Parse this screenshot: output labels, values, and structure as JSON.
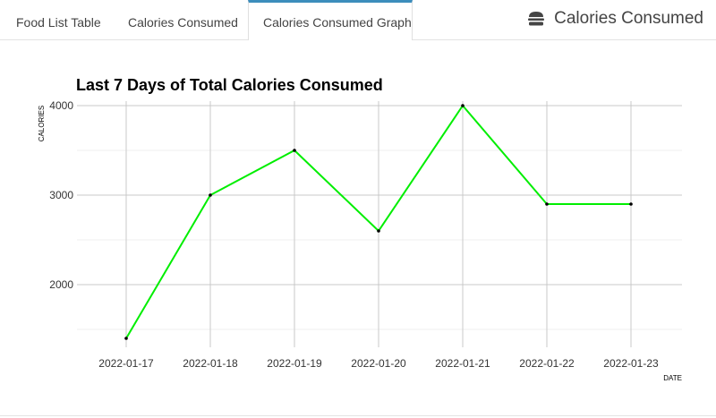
{
  "tabs": [
    {
      "label": "Food List Table"
    },
    {
      "label": "Calories Consumed"
    },
    {
      "label": "Calories Consumed Graph"
    }
  ],
  "header": {
    "title": "Calories Consumed",
    "icon": "hamburger-icon"
  },
  "accent_color": "#3c8dbc",
  "chart_data": {
    "type": "line",
    "title": "Last 7 Days of Total Calories Consumed",
    "xlabel": "DATE",
    "ylabel": "CALORIES",
    "categories": [
      "2022-01-17",
      "2022-01-18",
      "2022-01-19",
      "2022-01-20",
      "2022-01-21",
      "2022-01-22",
      "2022-01-23"
    ],
    "series": [
      {
        "values": [
          1400,
          3000,
          3500,
          2600,
          4000,
          2900,
          2900
        ],
        "color": "#00ee00"
      }
    ],
    "ylim": [
      1300,
      4050
    ],
    "yticks": [
      2000,
      3000,
      4000
    ],
    "grid": true,
    "legend": "none"
  }
}
